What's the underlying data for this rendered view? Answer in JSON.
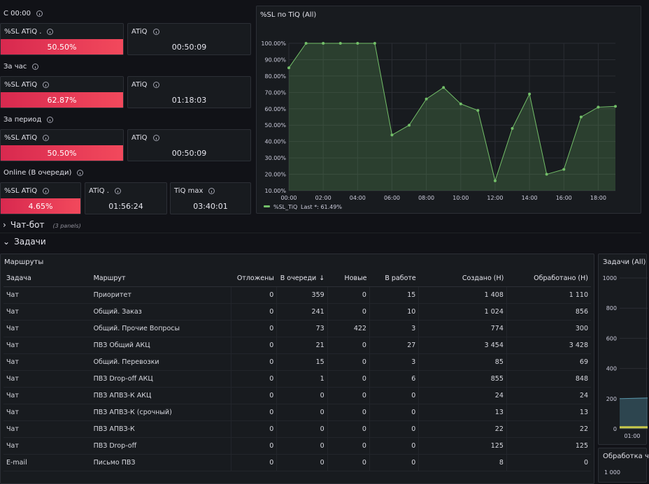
{
  "sections": {
    "since": "С 00:00",
    "hour": "За час",
    "period": "За период",
    "online": "Online (В очереди)"
  },
  "stats": {
    "since_sl_title": "%SL ATiQ .",
    "since_sl_value": "50.50%",
    "since_atiq_title": "ATiQ",
    "since_atiq_value": "00:50:09",
    "hour_sl_title": "%SL ATiQ",
    "hour_sl_value": "62.87%",
    "hour_atiq_title": "ATiQ",
    "hour_atiq_value": "01:18:03",
    "period_sl_title": "%SL ATiQ",
    "period_sl_value": "50.50%",
    "period_atiq_title": "ATiQ",
    "period_atiq_value": "00:50:09",
    "online_sl_title": "%SL ATiQ",
    "online_sl_value": "4.65%",
    "online_atiq_title": "ATiQ .",
    "online_atiq_value": "01:56:24",
    "online_tiqmax_title": "TiQ max",
    "online_tiqmax_value": "03:40:01"
  },
  "sl_chart": {
    "title": "%SL по TiQ (All)",
    "legend": "%SL_TiQ",
    "legend_last": "Last *: 61.49%"
  },
  "chart_data": [
    {
      "type": "area",
      "title": "%SL по TiQ (All)",
      "x_ticks": [
        "00:00",
        "02:00",
        "04:00",
        "06:00",
        "08:00",
        "10:00",
        "12:00",
        "14:00",
        "16:00",
        "18:00"
      ],
      "y_ticks": [
        "10.00%",
        "20.00%",
        "30.00%",
        "40.00%",
        "50.00%",
        "60.00%",
        "70.00%",
        "80.00%",
        "90.00%",
        "100.00%"
      ],
      "ylim": [
        10,
        100
      ],
      "xlim": [
        0,
        19
      ],
      "grid": true,
      "legend_position": "bottom-left",
      "series": [
        {
          "name": "%SL_TiQ",
          "color": "#73bf69",
          "x": [
            0,
            1,
            2,
            3,
            4,
            5,
            6,
            7,
            8,
            9,
            10,
            11,
            12,
            13,
            14,
            15,
            16,
            17,
            18,
            19
          ],
          "y": [
            85,
            100,
            100,
            100,
            100,
            100,
            44,
            50,
            66,
            73,
            63,
            59,
            16,
            48,
            69,
            20,
            23,
            55,
            61,
            61.49
          ]
        }
      ]
    },
    {
      "type": "area",
      "title": "Задачи (All)",
      "x_ticks": [
        "01:00"
      ],
      "y_ticks": [
        "0",
        "200",
        "400",
        "600",
        "800",
        "1000"
      ],
      "ylim": [
        0,
        1000
      ],
      "grid": true,
      "series": [
        {
          "name": "",
          "color": "#5794a8",
          "x": [
            0,
            1
          ],
          "y": [
            200,
            205
          ]
        },
        {
          "name": "",
          "color": "#c8c84a",
          "x": [
            0,
            1
          ],
          "y": [
            8,
            8
          ]
        }
      ]
    }
  ],
  "rows": {
    "chatbot": "Чат-бот",
    "chatbot_note": "(3 panels)",
    "tasks": "Задачи"
  },
  "routes": {
    "title": "Маршруты",
    "columns": [
      "Задача",
      "Маршрут",
      "Отложены",
      "В очереди",
      "Новые",
      "В работе",
      "Создано (Н)",
      "Обработано (Н)"
    ],
    "sort_arrow": "↓",
    "rows": [
      [
        "Чат",
        "Приоритет",
        "0",
        "359",
        "0",
        "15",
        "1 408",
        "1 110"
      ],
      [
        "Чат",
        "Общий. Заказ",
        "0",
        "241",
        "0",
        "10",
        "1 024",
        "856"
      ],
      [
        "Чат",
        "Общий. Прочие Вопросы",
        "0",
        "73",
        "422",
        "3",
        "774",
        "300"
      ],
      [
        "Чат",
        "ПВЗ Общий АКЦ",
        "0",
        "21",
        "0",
        "27",
        "3 454",
        "3 428"
      ],
      [
        "Чат",
        "Общий. Перевозки",
        "0",
        "15",
        "0",
        "3",
        "85",
        "69"
      ],
      [
        "Чат",
        "ПВЗ Drop-off АКЦ",
        "0",
        "1",
        "0",
        "6",
        "855",
        "848"
      ],
      [
        "Чат",
        "ПВЗ АПВЗ-К АКЦ",
        "0",
        "0",
        "0",
        "0",
        "24",
        "24"
      ],
      [
        "Чат",
        "ПВЗ АПВЗ-К (срочный)",
        "0",
        "0",
        "0",
        "0",
        "13",
        "13"
      ],
      [
        "Чат",
        "ПВЗ АПВЗ-К",
        "0",
        "0",
        "0",
        "0",
        "22",
        "22"
      ],
      [
        "Чат",
        "ПВЗ Drop-off",
        "0",
        "0",
        "0",
        "0",
        "125",
        "125"
      ],
      [
        "E-mail",
        "Письмо ПВЗ",
        "0",
        "0",
        "0",
        "0",
        "8",
        "0"
      ]
    ]
  },
  "tasks_panel": {
    "title": "Задачи (All)"
  },
  "processing_panel": {
    "title": "Обработка ч",
    "tick": "1 000"
  }
}
